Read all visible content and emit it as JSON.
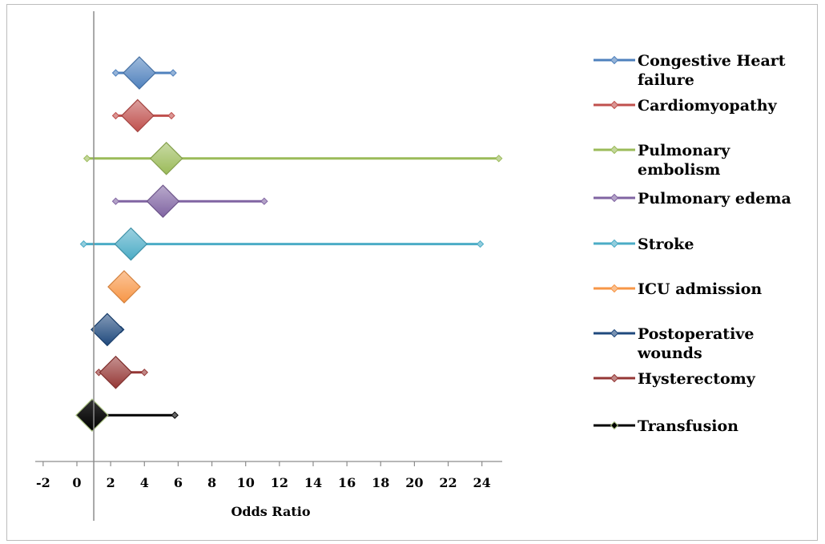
{
  "chart_data": {
    "type": "forest",
    "xlabel": "Odds Ratio",
    "xlim": [
      -2,
      25
    ],
    "xticks": [
      -2,
      0,
      2,
      4,
      6,
      8,
      10,
      12,
      14,
      16,
      18,
      20,
      22,
      24
    ],
    "reference_line": 1,
    "legend_position": "right",
    "grid": false,
    "series": [
      {
        "name": "Congestive Heart failure",
        "legend_lines": [
          "Congestive Heart",
          "failure"
        ],
        "or": 3.7,
        "low": 2.3,
        "high": 5.7,
        "color": "#4f81bd"
      },
      {
        "name": "Cardiomyopathy",
        "legend_lines": [
          "Cardiomyopathy"
        ],
        "or": 3.6,
        "low": 2.3,
        "high": 5.6,
        "color": "#c0504d"
      },
      {
        "name": "Pulmonary embolism",
        "legend_lines": [
          "Pulmonary",
          "embolism"
        ],
        "or": 5.3,
        "low": 0.6,
        "high": 25,
        "color": "#9bbb59"
      },
      {
        "name": "Pulmonary edema",
        "legend_lines": [
          "Pulmonary edema"
        ],
        "or": 5.1,
        "low": 2.3,
        "high": 11.1,
        "color": "#8064a2"
      },
      {
        "name": "Stroke",
        "legend_lines": [
          "Stroke"
        ],
        "or": 3.2,
        "low": 0.4,
        "high": 23.9,
        "color": "#4bacc6"
      },
      {
        "name": "ICU admission",
        "legend_lines": [
          "ICU admission"
        ],
        "or": 2.8,
        "low": 2.3,
        "high": 3.3,
        "color": "#f79646"
      },
      {
        "name": "Postoperative wounds",
        "legend_lines": [
          "Postoperative",
          "wounds"
        ],
        "or": 1.8,
        "low": 1.2,
        "high": 2.6,
        "color": "#1f497d"
      },
      {
        "name": "Hysterectomy",
        "legend_lines": [
          "Hysterectomy"
        ],
        "or": 2.3,
        "low": 1.3,
        "high": 4.0,
        "color": "#953735"
      },
      {
        "name": "Transfusion",
        "legend_lines": [
          "Transfusion"
        ],
        "or": 0.9,
        "low": 0.2,
        "high": 5.8,
        "color": "#000000"
      }
    ]
  }
}
